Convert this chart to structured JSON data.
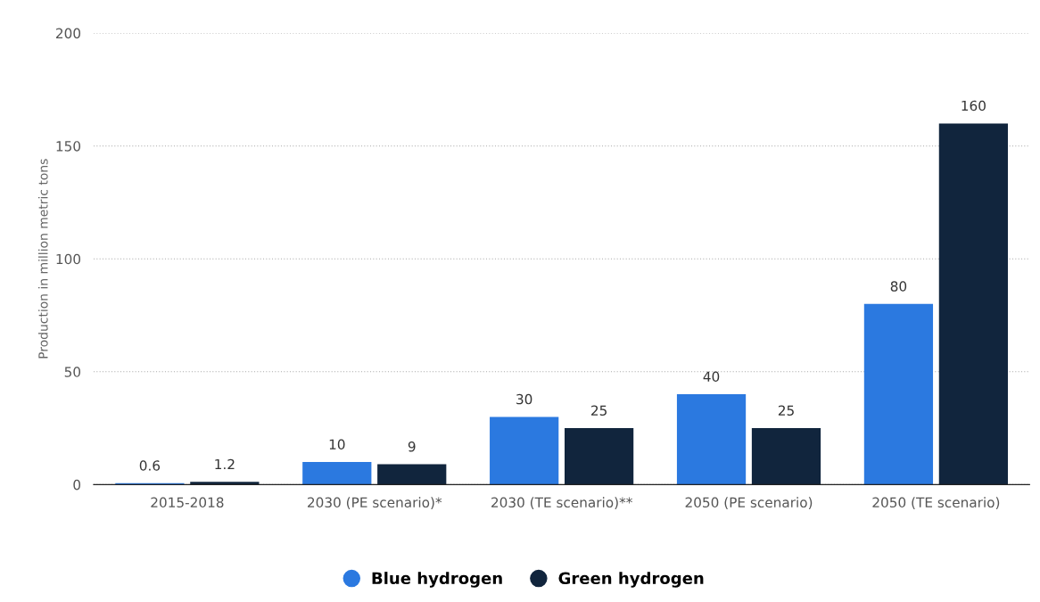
{
  "chart_data": {
    "type": "bar",
    "ylabel": "Production in million metric tons",
    "categories": [
      "2015-2018",
      "2030 (PE scenario)*",
      "2030 (TE scenario)**",
      "2050 (PE scenario)",
      "2050 (TE scenario)"
    ],
    "series": [
      {
        "name": "Blue hydrogen",
        "color": "#2b79e0",
        "values": [
          0.6,
          10,
          30,
          40,
          80
        ]
      },
      {
        "name": "Green hydrogen",
        "color": "#11253d",
        "values": [
          1.2,
          9,
          25,
          25,
          160
        ]
      }
    ],
    "ylim": [
      0,
      200
    ],
    "yticks": [
      0,
      50,
      100,
      150,
      200
    ],
    "grid": "y",
    "legend": "bottom",
    "data_labels": true
  }
}
